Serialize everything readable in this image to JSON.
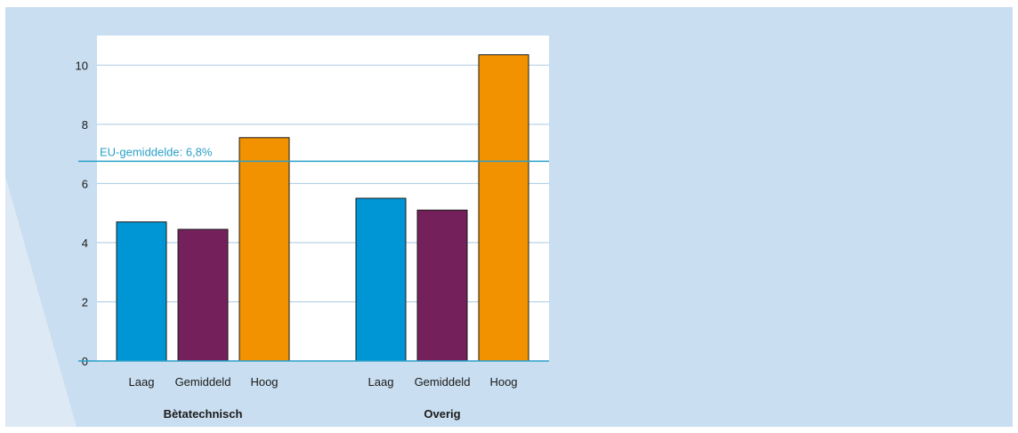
{
  "chart_data": {
    "type": "bar",
    "title": "",
    "xlabel": "",
    "ylabel": "",
    "ylim": [
      0,
      11
    ],
    "yticks": [
      0,
      2,
      4,
      6,
      8,
      10
    ],
    "grid": true,
    "groups": [
      {
        "name": "Bètatechnisch",
        "categories": [
          "Laag",
          "Gemiddeld",
          "Hoog"
        ],
        "values": [
          4.7,
          4.45,
          7.55
        ]
      },
      {
        "name": "Overig",
        "categories": [
          "Laag",
          "Gemiddeld",
          "Hoog"
        ],
        "values": [
          5.5,
          5.1,
          10.35
        ]
      }
    ],
    "bar_colors": [
      "#0096d6",
      "#74205a",
      "#f39200"
    ],
    "reference_line": {
      "label": "EU-gemiddelde: 6,8%",
      "value": 6.75,
      "color": "#2aa0c8"
    }
  }
}
